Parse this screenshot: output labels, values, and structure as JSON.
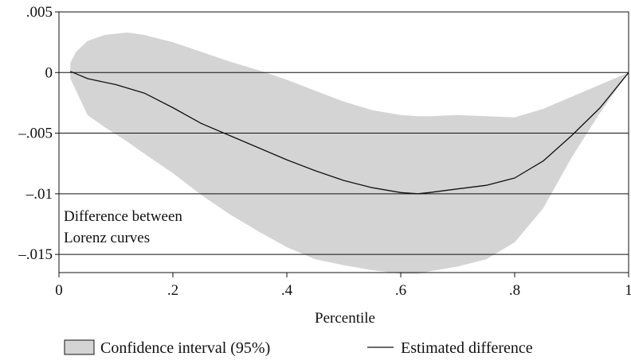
{
  "chart_data": {
    "type": "area",
    "title": "",
    "xlabel": "Percentile",
    "ylabel": "",
    "annotation_lines": [
      "Difference between",
      "Lorenz curves"
    ],
    "xlim": [
      0,
      1
    ],
    "ylim": [
      -0.0165,
      0.005
    ],
    "x_ticks": [
      {
        "value": 0,
        "label": "0"
      },
      {
        "value": 0.2,
        "label": ".2"
      },
      {
        "value": 0.4,
        "label": ".4"
      },
      {
        "value": 0.6,
        "label": ".6"
      },
      {
        "value": 0.8,
        "label": ".8"
      },
      {
        "value": 1,
        "label": "1"
      }
    ],
    "y_ticks": [
      {
        "value": 0.005,
        "label": ".005"
      },
      {
        "value": 0,
        "label": "0"
      },
      {
        "value": -0.005,
        "label": "–.005"
      },
      {
        "value": -0.01,
        "label": "–.01"
      },
      {
        "value": -0.015,
        "label": "–.015"
      }
    ],
    "grid": "horizontal",
    "legend_position": "bottom",
    "series": [
      {
        "name": "Confidence interval (95%)",
        "kind": "band",
        "color": "#d4d4d4",
        "x": [
          0.02,
          0.03,
          0.05,
          0.08,
          0.1,
          0.12,
          0.15,
          0.2,
          0.25,
          0.3,
          0.35,
          0.4,
          0.45,
          0.5,
          0.55,
          0.6,
          0.63,
          0.65,
          0.7,
          0.75,
          0.8,
          0.85,
          0.9,
          0.95,
          1.0
        ],
        "upper": [
          0.0008,
          0.0017,
          0.0026,
          0.0031,
          0.0032,
          0.0033,
          0.0031,
          0.0025,
          0.0017,
          0.0009,
          0.0002,
          -0.0006,
          -0.0015,
          -0.0024,
          -0.0031,
          -0.0035,
          -0.0036,
          -0.0036,
          -0.0035,
          -0.0036,
          -0.0037,
          -0.003,
          -0.002,
          -0.001,
          0.0
        ],
        "lower": [
          -0.0005,
          -0.0015,
          -0.0035,
          -0.0045,
          -0.0051,
          -0.0057,
          -0.0067,
          -0.0083,
          -0.0101,
          -0.0117,
          -0.0131,
          -0.0144,
          -0.0154,
          -0.0159,
          -0.0163,
          -0.0166,
          -0.0166,
          -0.0164,
          -0.016,
          -0.0154,
          -0.014,
          -0.0112,
          -0.007,
          -0.0033,
          0.0
        ]
      },
      {
        "name": "Estimated difference",
        "kind": "line",
        "color": "#111111",
        "x": [
          0.02,
          0.03,
          0.05,
          0.07,
          0.1,
          0.15,
          0.2,
          0.25,
          0.3,
          0.35,
          0.4,
          0.45,
          0.5,
          0.55,
          0.6,
          0.63,
          0.65,
          0.7,
          0.75,
          0.8,
          0.85,
          0.9,
          0.95,
          1.0
        ],
        "y": [
          0.0001,
          -0.0001,
          -0.0005,
          -0.0007,
          -0.001,
          -0.0017,
          -0.0029,
          -0.0042,
          -0.0052,
          -0.0062,
          -0.0072,
          -0.0081,
          -0.0089,
          -0.0095,
          -0.0099,
          -0.01,
          -0.0099,
          -0.0096,
          -0.0093,
          -0.0087,
          -0.0073,
          -0.0052,
          -0.0029,
          0.0
        ]
      }
    ]
  }
}
